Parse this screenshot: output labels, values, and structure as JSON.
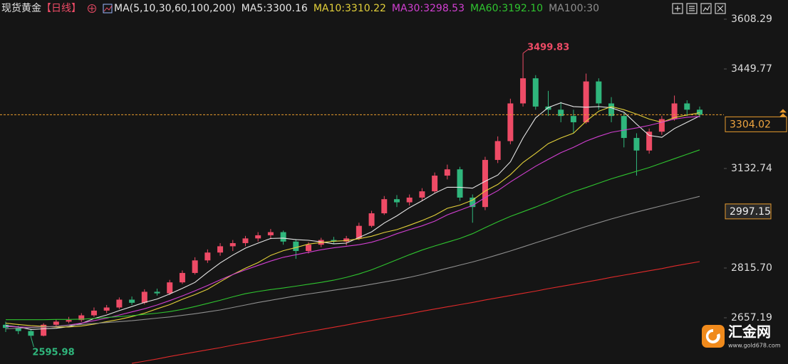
{
  "chart_data": {
    "type": "candlestick",
    "title": "现货黄金",
    "period": "【日线】",
    "indicator": "MA(5,10,30,60,100,200)",
    "up_color": "#ee4b66",
    "down_color": "#2fb67c",
    "ylim": [
      2510.0,
      3669.4
    ],
    "yticks": [
      3608.29,
      3449.77,
      3132.74,
      {
        "value": 2815.7,
        "label": "2815.70"
      },
      2657.19
    ],
    "last_price": 3304.02,
    "marked_price": 2997.15,
    "open": [
      2635,
      2625,
      2615,
      2600,
      2635,
      2645,
      2650,
      2665,
      2680,
      2690,
      2715,
      2705,
      2740,
      2735,
      2770,
      2800,
      2840,
      2865,
      2885,
      2895,
      2910,
      2920,
      2930,
      2900,
      2870,
      2890,
      2905,
      2900,
      2910,
      2950,
      2990,
      3035,
      3025,
      3040,
      3060,
      3110,
      3130,
      3040,
      3010,
      3160,
      3220,
      3340,
      3420,
      3330,
      3320,
      3300,
      3280,
      3410,
      3340,
      3300,
      3230,
      3190,
      3250,
      3290,
      3340,
      3320
    ],
    "high": [
      2645,
      2632,
      2622,
      2640,
      2652,
      2660,
      2672,
      2690,
      2698,
      2722,
      2725,
      2748,
      2750,
      2778,
      2808,
      2850,
      2875,
      2895,
      2905,
      2918,
      2930,
      2940,
      2935,
      2908,
      2898,
      2912,
      2915,
      2918,
      2960,
      2998,
      3045,
      3048,
      3050,
      3070,
      3120,
      3145,
      3138,
      3050,
      3170,
      3235,
      3355,
      3499.83,
      3430,
      3380,
      3345,
      3320,
      3435,
      3420,
      3360,
      3310,
      3245,
      3260,
      3300,
      3365,
      3350,
      3330
    ],
    "low": [
      2612,
      2605,
      2595.98,
      2598,
      2630,
      2640,
      2644,
      2660,
      2672,
      2685,
      2698,
      2700,
      2728,
      2730,
      2765,
      2795,
      2832,
      2855,
      2870,
      2885,
      2900,
      2908,
      2890,
      2845,
      2862,
      2882,
      2892,
      2888,
      2905,
      2945,
      2985,
      3010,
      3015,
      3030,
      3055,
      3098,
      3030,
      2960,
      3000,
      3150,
      3210,
      3330,
      3320,
      3300,
      3280,
      3245,
      3275,
      3320,
      3280,
      3200,
      3110,
      3180,
      3240,
      3285,
      3300,
      3295
    ],
    "close": [
      2625,
      2615,
      2600,
      2635,
      2645,
      2650,
      2665,
      2680,
      2690,
      2715,
      2705,
      2740,
      2735,
      2770,
      2800,
      2840,
      2865,
      2885,
      2895,
      2910,
      2920,
      2930,
      2900,
      2870,
      2890,
      2905,
      2900,
      2910,
      2950,
      2990,
      3035,
      3025,
      3040,
      3060,
      3110,
      3130,
      3040,
      3010,
      3160,
      3220,
      3340,
      3420,
      3330,
      3320,
      3300,
      3280,
      3410,
      3340,
      3300,
      3230,
      3190,
      3250,
      3290,
      3340,
      3320,
      3304.02
    ],
    "series": [
      {
        "name": "MA5:3300.16",
        "color": "#e6e6e6",
        "values": [
          2632,
          2628,
          2620,
          2622,
          2624,
          2629,
          2639,
          2655,
          2666,
          2680,
          2693,
          2706,
          2717,
          2733,
          2751,
          2770,
          2802,
          2832,
          2857,
          2879,
          2895,
          2910,
          2911,
          2906,
          2904,
          2899,
          2893,
          2895,
          2913,
          2931,
          2959,
          2982,
          3008,
          3030,
          3054,
          3073,
          3073,
          3070,
          3092,
          3112,
          3154,
          3230,
          3294,
          3327,
          3342,
          3330,
          3328,
          3330,
          3326,
          3312,
          3274,
          3238,
          3232,
          3260,
          3280,
          3300.16
        ]
      },
      {
        "name": "MA10:3310.22",
        "color": "#e3d03a",
        "values": [
          2640,
          2636,
          2632,
          2630,
          2628,
          2628,
          2631,
          2637,
          2645,
          2652,
          2661,
          2672,
          2686,
          2699,
          2716,
          2731,
          2748,
          2772,
          2795,
          2815,
          2833,
          2856,
          2871,
          2881,
          2892,
          2897,
          2901,
          2903,
          2909,
          2917,
          2929,
          2938,
          2952,
          2967,
          2984,
          3006,
          3016,
          3032,
          3061,
          3082,
          3113,
          3152,
          3181,
          3212,
          3230,
          3245,
          3283,
          3315,
          3330,
          3320,
          3306,
          3290,
          3280,
          3295,
          3303,
          3310.22
        ]
      },
      {
        "name": "MA30:3298.53",
        "color": "#d23fd2",
        "values": [
          2630,
          2628,
          2627,
          2628,
          2630,
          2634,
          2640,
          2648,
          2656,
          2666,
          2676,
          2686,
          2698,
          2712,
          2727,
          2743,
          2760,
          2778,
          2795,
          2810,
          2824,
          2838,
          2850,
          2858,
          2866,
          2874,
          2880,
          2885,
          2890,
          2898,
          2910,
          2925,
          2938,
          2950,
          2965,
          2985,
          3000,
          3015,
          3040,
          3062,
          3090,
          3115,
          3140,
          3162,
          3183,
          3200,
          3220,
          3235,
          3248,
          3255,
          3262,
          3270,
          3280,
          3290,
          3296,
          3298.53
        ]
      },
      {
        "name": "MA60:3192.10",
        "color": "#2fc42f",
        "values": [
          2651,
          2651,
          2651,
          2651,
          2652,
          2652,
          2653,
          2655,
          2658,
          2661,
          2664,
          2668,
          2672,
          2677,
          2684,
          2693,
          2703,
          2713,
          2724,
          2734,
          2741,
          2747,
          2752,
          2758,
          2764,
          2770,
          2777,
          2786,
          2797,
          2810,
          2826,
          2842,
          2858,
          2873,
          2886,
          2898,
          2910,
          2925,
          2944,
          2963,
          2980,
          2995,
          3010,
          3026,
          3043,
          3059,
          3072,
          3086,
          3100,
          3112,
          3124,
          3136,
          3150,
          3164,
          3178,
          3192.1
        ]
      },
      {
        "name": "MA100:30",
        "color": "#8e8e8e",
        "values": [
          2622,
          2624,
          2626,
          2628,
          2630,
          2633,
          2636,
          2639,
          2642,
          2645,
          2648,
          2652,
          2656,
          2660,
          2665,
          2670,
          2676,
          2682,
          2690,
          2698,
          2706,
          2713,
          2720,
          2727,
          2733,
          2739,
          2745,
          2751,
          2757,
          2764,
          2771,
          2778,
          2786,
          2795,
          2805,
          2815,
          2825,
          2835,
          2846,
          2858,
          2870,
          2883,
          2896,
          2909,
          2922,
          2935,
          2948,
          2960,
          2972,
          2983,
          2994,
          3004,
          3014,
          3024,
          3034,
          3044
        ]
      },
      {
        "color": "#e02a2a",
        "values": [
          null,
          null,
          null,
          null,
          null,
          null,
          null,
          null,
          null,
          null,
          2512,
          2519,
          2526,
          2534,
          2541,
          2548,
          2555,
          2562,
          2570,
          2577,
          2584,
          2591,
          2598,
          2606,
          2613,
          2620,
          2627,
          2634,
          2642,
          2649,
          2656,
          2663,
          2670,
          2678,
          2685,
          2692,
          2699,
          2706,
          2714,
          2721,
          2728,
          2735,
          2742,
          2750,
          2757,
          2764,
          2771,
          2778,
          2786,
          2793,
          2800,
          2807,
          2814,
          2822,
          2829,
          2836
        ]
      }
    ],
    "watermark": {
      "name": "汇金网",
      "url": "www.gold678.com"
    }
  }
}
